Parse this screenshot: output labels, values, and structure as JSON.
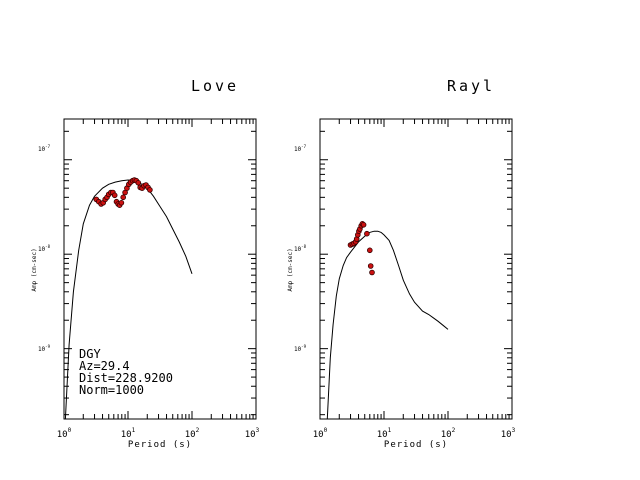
{
  "panels": [
    {
      "title": "Love",
      "xlabel": "Period (s)",
      "ylabel": "Amp (cm-sec)",
      "x_ticks": [
        {
          "base": "10",
          "exp": "0"
        },
        {
          "base": "10",
          "exp": "1"
        },
        {
          "base": "10",
          "exp": "2"
        },
        {
          "base": "10",
          "exp": "3"
        }
      ],
      "y_ticks": [
        {
          "base": "10",
          "exp": "-7"
        },
        {
          "base": "10",
          "exp": "-8"
        },
        {
          "base": "10",
          "exp": "-9"
        }
      ],
      "info": [
        "DGY",
        "Az=29.4",
        "Dist=228.9200",
        "Norm=1000"
      ]
    },
    {
      "title": "Rayl",
      "xlabel": "Period (s)",
      "ylabel": "Amp (cm-sec)",
      "x_ticks": [
        {
          "base": "10",
          "exp": "0"
        },
        {
          "base": "10",
          "exp": "1"
        },
        {
          "base": "10",
          "exp": "2"
        },
        {
          "base": "10",
          "exp": "3"
        }
      ],
      "y_ticks": [
        {
          "base": "10",
          "exp": "-7"
        },
        {
          "base": "10",
          "exp": "-8"
        },
        {
          "base": "10",
          "exp": "-9"
        }
      ],
      "info": []
    }
  ],
  "chart_data": [
    {
      "type": "scatter",
      "title": "Love",
      "xlabel": "Period (s)",
      "ylabel": "Amp (cm-sec)",
      "x_scale": "log",
      "y_scale": "log",
      "xlim": [
        1,
        1000
      ],
      "ylim": [
        1.8e-10,
        2.7e-07
      ],
      "colors": {
        "model": "#000000",
        "observed_fill": "#cc1111",
        "observed_edge": "#330000"
      },
      "series": [
        {
          "kind": "line",
          "x": [
            1.05,
            1.2,
            1.4,
            1.7,
            2.0,
            2.5,
            3.0,
            4.0,
            5.0,
            6.3,
            8.0,
            10.0,
            12.6,
            15.8,
            20.0,
            25.0,
            31.6,
            40.0,
            50.0,
            63.0,
            80.0,
            100.0
          ],
          "y": [
            1.8e-10,
            1.1e-09,
            4e-09,
            1.1e-08,
            2.1e-08,
            3.3e-08,
            4.1e-08,
            5e-08,
            5.5e-08,
            5.8e-08,
            6e-08,
            6.1e-08,
            6e-08,
            5.6e-08,
            5e-08,
            4.1e-08,
            3.2e-08,
            2.5e-08,
            1.85e-08,
            1.35e-08,
            9.5e-09,
            6.2e-09
          ]
        },
        {
          "kind": "points",
          "x": [
            3.2,
            3.5,
            3.8,
            4.1,
            4.4,
            4.7,
            5.0,
            5.4,
            5.8,
            6.2,
            6.6,
            7.0,
            7.4,
            7.9,
            8.4,
            9.0,
            9.6,
            10.3,
            11.0,
            11.8,
            12.6,
            13.5,
            14.5,
            15.5,
            16.6,
            17.8,
            19.1,
            20.5,
            22.0
          ],
          "y": [
            3.8e-08,
            3.6e-08,
            3.4e-08,
            3.5e-08,
            3.8e-08,
            4e-08,
            4.3e-08,
            4.5e-08,
            4.5e-08,
            4.2e-08,
            3.6e-08,
            3.4e-08,
            3.3e-08,
            3.5e-08,
            4e-08,
            4.5e-08,
            5e-08,
            5.5e-08,
            5.8e-08,
            6e-08,
            6.1e-08,
            6e-08,
            5.7e-08,
            5.1e-08,
            5e-08,
            5.3e-08,
            5.4e-08,
            5.1e-08,
            4.8e-08
          ]
        }
      ]
    },
    {
      "type": "scatter",
      "title": "Rayl",
      "xlabel": "Period (s)",
      "ylabel": "Amp (cm-sec)",
      "x_scale": "log",
      "y_scale": "log",
      "xlim": [
        1,
        1000
      ],
      "ylim": [
        1.8e-10,
        2.7e-07
      ],
      "colors": {
        "model": "#000000",
        "observed_fill": "#cc1111",
        "observed_edge": "#330000"
      },
      "series": [
        {
          "kind": "line",
          "x": [
            1.3,
            1.45,
            1.6,
            1.8,
            2.0,
            2.3,
            2.6,
            3.0,
            3.5,
            4.0,
            5.0,
            6.0,
            7.0,
            8.0,
            9.0,
            10.0,
            12.0,
            14.0,
            17.0,
            20.0,
            25.0,
            30.0,
            40.0,
            50.0,
            60.0,
            70.0,
            85.0,
            100.0
          ],
          "y": [
            1.8e-10,
            8e-10,
            1.8e-09,
            3.6e-09,
            5.5e-09,
            7.6e-09,
            9.2e-09,
            1.05e-08,
            1.2e-08,
            1.35e-08,
            1.55e-08,
            1.7e-08,
            1.75e-08,
            1.75e-08,
            1.7e-08,
            1.6e-08,
            1.4e-08,
            1.1e-08,
            7.5e-09,
            5.3e-09,
            3.8e-09,
            3.1e-09,
            2.5e-09,
            2.3e-09,
            2.1e-09,
            1.95e-09,
            1.75e-09,
            1.6e-09
          ]
        },
        {
          "kind": "points",
          "x": [
            3.0,
            3.2,
            3.4,
            3.6,
            3.75,
            3.9,
            4.05,
            4.2,
            4.4,
            4.6,
            4.8,
            5.4,
            6.0,
            6.2,
            6.5
          ],
          "y": [
            1.25e-08,
            1.28e-08,
            1.3e-08,
            1.35e-08,
            1.45e-08,
            1.6e-08,
            1.75e-08,
            1.85e-08,
            2e-08,
            2.1e-08,
            2.05e-08,
            1.65e-08,
            1.1e-08,
            7.5e-09,
            6.4e-09
          ]
        }
      ]
    }
  ]
}
